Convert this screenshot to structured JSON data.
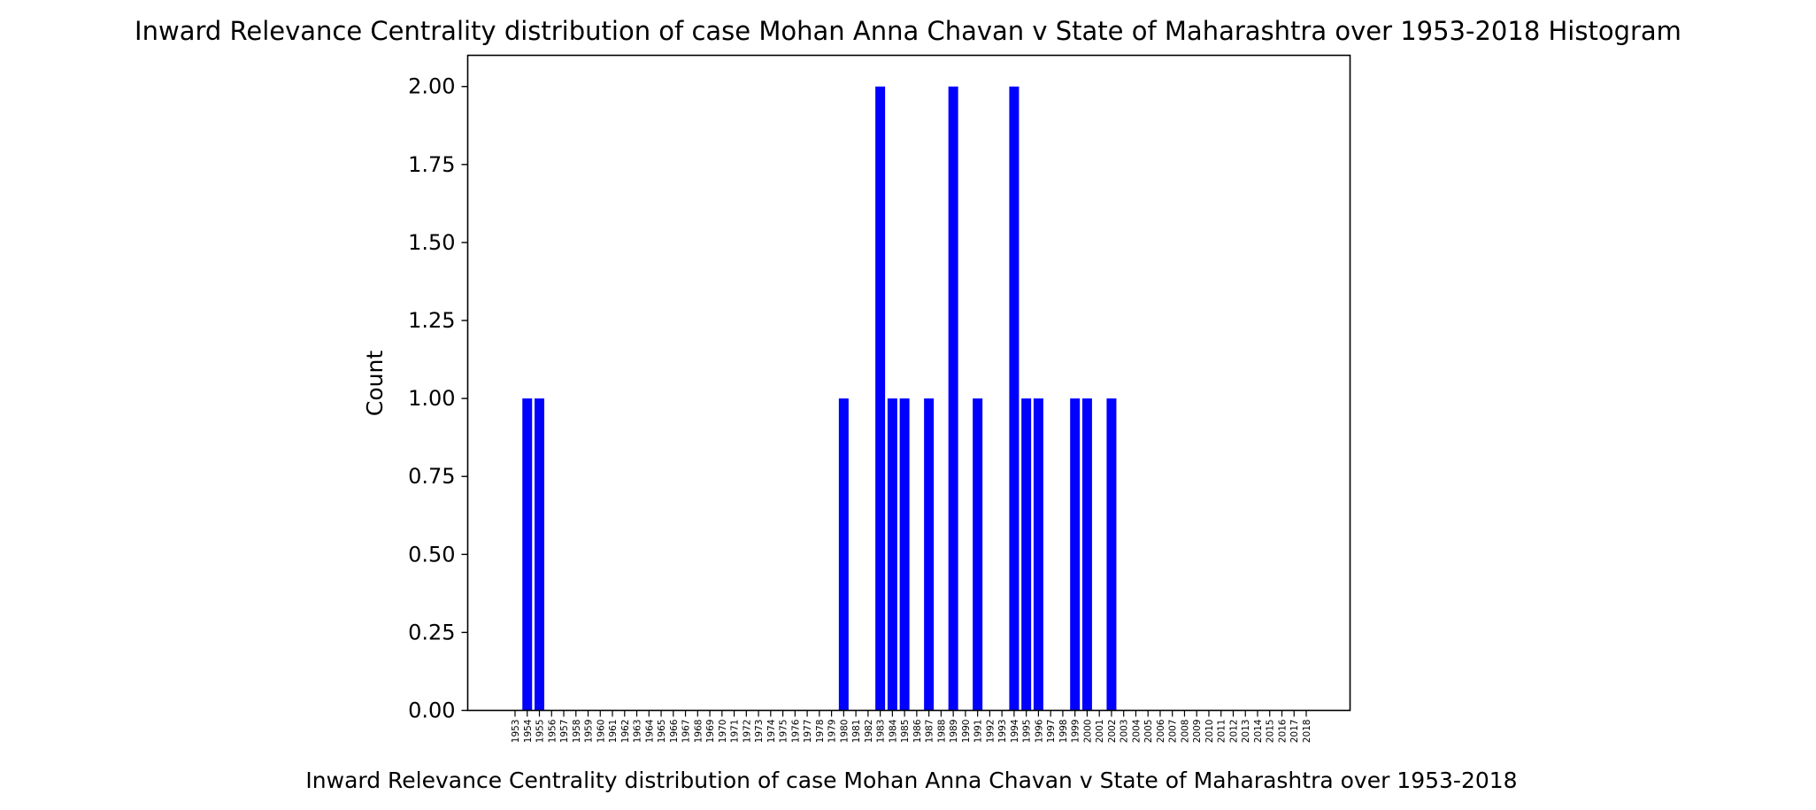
{
  "colors": {
    "bar": "#0000ff",
    "axis": "#000000",
    "background": "#ffffff"
  },
  "chart_data": {
    "type": "bar",
    "title": "Inward Relevance Centrality distribution of case Mohan Anna Chavan v State of Maharashtra over 1953-2018 Histogram",
    "xlabel": "Inward Relevance Centrality distribution of case Mohan Anna Chavan v State of Maharashtra over 1953-2018",
    "ylabel": "Count",
    "ylim": [
      0,
      2.1
    ],
    "yticks": [
      "0.00",
      "0.25",
      "0.50",
      "0.75",
      "1.00",
      "1.25",
      "1.50",
      "1.75",
      "2.00"
    ],
    "grid": false,
    "categories": [
      "1953",
      "1954",
      "1955",
      "1956",
      "1957",
      "1958",
      "1959",
      "1960",
      "1961",
      "1962",
      "1963",
      "1964",
      "1965",
      "1966",
      "1967",
      "1968",
      "1969",
      "1970",
      "1971",
      "1972",
      "1973",
      "1974",
      "1975",
      "1976",
      "1977",
      "1978",
      "1979",
      "1980",
      "1981",
      "1982",
      "1983",
      "1984",
      "1985",
      "1986",
      "1987",
      "1988",
      "1989",
      "1990",
      "1991",
      "1992",
      "1993",
      "1994",
      "1995",
      "1996",
      "1997",
      "1998",
      "1999",
      "2000",
      "2001",
      "2002",
      "2003",
      "2004",
      "2005",
      "2006",
      "2007",
      "2008",
      "2009",
      "2010",
      "2011",
      "2012",
      "2013",
      "2014",
      "2015",
      "2016",
      "2017",
      "2018"
    ],
    "values": [
      0,
      1,
      1,
      0,
      0,
      0,
      0,
      0,
      0,
      0,
      0,
      0,
      0,
      0,
      0,
      0,
      0,
      0,
      0,
      0,
      0,
      0,
      0,
      0,
      0,
      0,
      0,
      1,
      0,
      0,
      2,
      1,
      1,
      0,
      1,
      0,
      2,
      0,
      1,
      0,
      0,
      2,
      1,
      1,
      0,
      0,
      1,
      1,
      0,
      1,
      0,
      0,
      0,
      0,
      0,
      0,
      0,
      0,
      0,
      0,
      0,
      0,
      0,
      0,
      0,
      0
    ]
  }
}
